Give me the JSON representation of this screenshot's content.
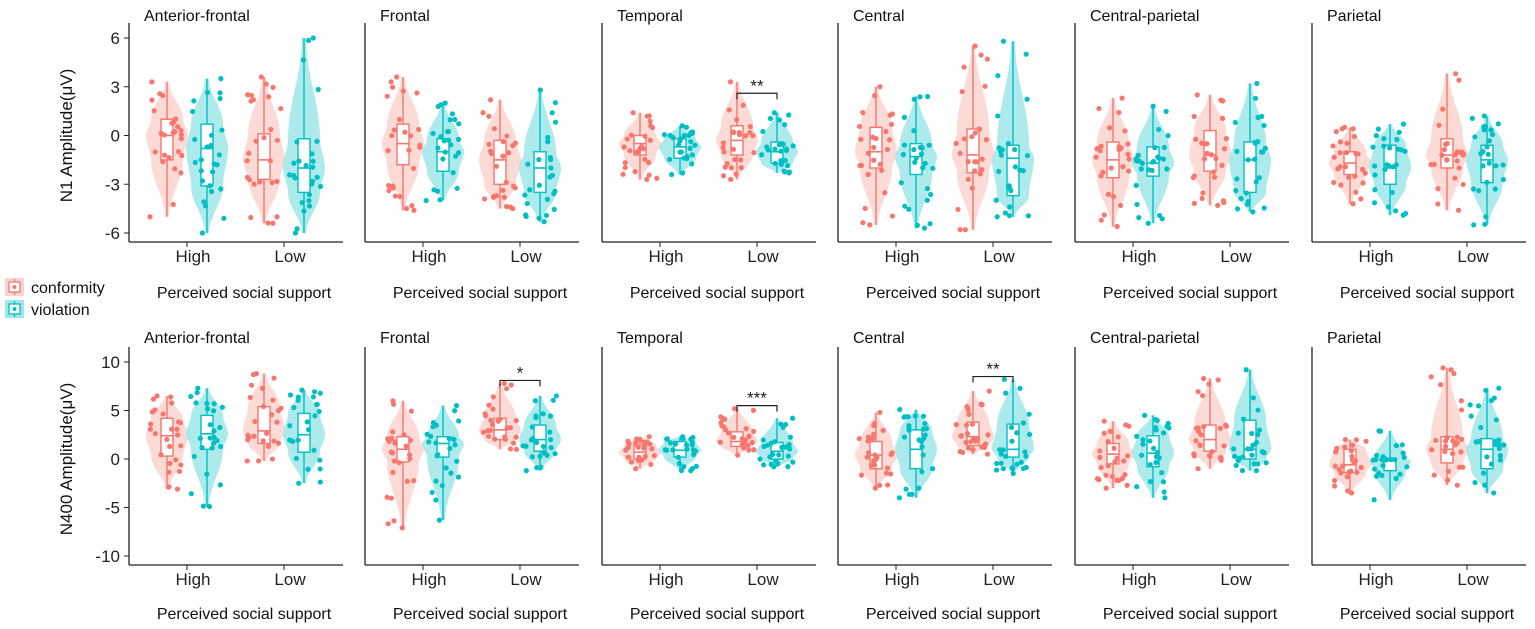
{
  "chart_data": [
    {
      "type": "violin",
      "row": "N1",
      "ylabel": "N1 Amplitude(μV)",
      "xlabel": "Perceived social support",
      "ylim": [
        -6.5,
        6.5
      ],
      "yticks": [
        6,
        3,
        0,
        -3,
        -6
      ],
      "categories": [
        "High",
        "Low"
      ],
      "series_names": [
        "conformity",
        "violation"
      ],
      "stats_order": [
        "min",
        "q1",
        "median",
        "q3",
        "max"
      ],
      "panels": [
        {
          "title": "Anterior-frontal",
          "groups": {
            "High": [
              [
                -5,
                -1.5,
                0,
                1,
                3.3
              ],
              [
                -6,
                -3.1,
                -0.8,
                0.7,
                3.5
              ]
            ],
            "Low": [
              [
                -5.4,
                -2.7,
                -1.5,
                0.1,
                3.6
              ],
              [
                -6,
                -3.5,
                -2,
                -0.2,
                6
              ]
            ]
          },
          "sig": []
        },
        {
          "title": "Frontal",
          "groups": {
            "High": [
              [
                -4.6,
                -1.8,
                -0.5,
                0.7,
                3.6
              ],
              [
                -4,
                -2.2,
                -1,
                -0.2,
                2
              ]
            ],
            "Low": [
              [
                -4.5,
                -3,
                -1.5,
                -0.3,
                2.2
              ],
              [
                -5.3,
                -3.5,
                -2,
                -1,
                2.8
              ]
            ]
          },
          "sig": []
        },
        {
          "title": "Temporal",
          "groups": {
            "High": [
              [
                -2.7,
                -1.2,
                -0.5,
                0,
                1.4
              ],
              [
                -2.4,
                -1.4,
                -0.7,
                -0.2,
                0.6
              ]
            ],
            "Low": [
              [
                -2.7,
                -1.2,
                -0.3,
                0.6,
                3.3
              ],
              [
                -2.3,
                -1.7,
                -1,
                -0.4,
                1.4
              ]
            ]
          },
          "sig": [
            {
              "category": "Low",
              "label": "**",
              "y": 2.6
            }
          ]
        },
        {
          "title": "Central",
          "groups": {
            "High": [
              [
                -5.5,
                -2,
                -1,
                0.5,
                3
              ],
              [
                -5.7,
                -2.4,
                -1.3,
                -0.5,
                2.4
              ]
            ],
            "Low": [
              [
                -5.8,
                -2.3,
                -1.2,
                0.4,
                5.5
              ],
              [
                -5,
                -3.7,
                -1.4,
                -0.6,
                5.8
              ]
            ]
          },
          "sig": []
        },
        {
          "title": "Central-parietal",
          "groups": {
            "High": [
              [
                -5.6,
                -2.6,
                -1.5,
                -0.4,
                2.3
              ],
              [
                -5.4,
                -2.5,
                -1.7,
                -0.7,
                1.8
              ]
            ],
            "Low": [
              [
                -4.3,
                -2.2,
                -1.2,
                0.3,
                2.5
              ],
              [
                -4.7,
                -3.5,
                -1.5,
                -0.4,
                3.2
              ]
            ]
          },
          "sig": []
        },
        {
          "title": "Parietal",
          "groups": {
            "High": [
              [
                -4.2,
                -2.4,
                -1.7,
                -1,
                0.5
              ],
              [
                -4.9,
                -3,
                -2,
                -0.6,
                0.7
              ]
            ],
            "Low": [
              [
                -4.6,
                -2,
                -1.2,
                -0.2,
                3.8
              ],
              [
                -5.5,
                -2.9,
                -1.5,
                -0.6,
                1.2
              ]
            ]
          },
          "sig": []
        }
      ]
    },
    {
      "type": "violin",
      "row": "N400",
      "ylabel": "N400 Amplitude(μV)",
      "xlabel": "Perceived social support",
      "ylim": [
        -11,
        11
      ],
      "yticks": [
        10,
        5,
        0,
        -5,
        -10
      ],
      "categories": [
        "High",
        "Low"
      ],
      "series_names": [
        "conformity",
        "violation"
      ],
      "stats_order": [
        "min",
        "q1",
        "median",
        "q3",
        "max"
      ],
      "panels": [
        {
          "title": "Anterior-frontal",
          "groups": {
            "High": [
              [
                -3.1,
                0.3,
                2.4,
                4.2,
                6.5
              ],
              [
                -4.9,
                1,
                2.6,
                4.5,
                7.3
              ]
            ],
            "Low": [
              [
                -0.2,
                1.6,
                2.9,
                5.4,
                8.8
              ],
              [
                -2.5,
                0.7,
                2.5,
                4.7,
                7.1
              ]
            ]
          },
          "sig": []
        },
        {
          "title": "Frontal",
          "groups": {
            "High": [
              [
                -7.1,
                -0.3,
                1,
                2.3,
                6
              ],
              [
                -6.3,
                0.2,
                1.6,
                2.3,
                5.5
              ]
            ],
            "Low": [
              [
                1,
                2,
                3,
                4.2,
                7.8
              ],
              [
                -1.2,
                0.8,
                2,
                3.5,
                6.5
              ]
            ]
          },
          "sig": [
            {
              "category": "Low",
              "label": "*",
              "y": 8.1
            }
          ]
        },
        {
          "title": "Temporal",
          "groups": {
            "High": [
              [
                -1,
                0,
                0.7,
                1.4,
                2.3
              ],
              [
                -1.2,
                0.2,
                0.9,
                1.8,
                2.3
              ]
            ],
            "Low": [
              [
                0.4,
                1.3,
                1.8,
                2.8,
                5.2
              ],
              [
                -0.8,
                0,
                0.8,
                1.7,
                4.2
              ]
            ]
          },
          "sig": [
            {
              "category": "Low",
              "label": "***",
              "y": 5.5
            }
          ]
        },
        {
          "title": "Central",
          "groups": {
            "High": [
              [
                -3,
                -1,
                0.4,
                1.8,
                4.8
              ],
              [
                -4,
                -1,
                1,
                3,
                5.1
              ]
            ],
            "Low": [
              [
                0.5,
                1.4,
                2.3,
                3.8,
                7
              ],
              [
                -1.5,
                0.2,
                1,
                3.6,
                8.2
              ]
            ]
          },
          "sig": [
            {
              "category": "Low",
              "label": "**",
              "y": 8.5
            }
          ]
        },
        {
          "title": "Central-parietal",
          "groups": {
            "High": [
              [
                -3,
                -0.5,
                0.5,
                1.6,
                3.9
              ],
              [
                -4,
                -0.8,
                0.6,
                2.4,
                4.5
              ]
            ],
            "Low": [
              [
                -1,
                0.8,
                2,
                3.5,
                8.3
              ],
              [
                -1.2,
                0,
                1,
                4,
                9.2
              ]
            ]
          },
          "sig": []
        },
        {
          "title": "Parietal",
          "groups": {
            "High": [
              [
                -3.5,
                -1.4,
                -0.6,
                1,
                2
              ],
              [
                -4.2,
                -1.2,
                -0.1,
                0,
                2.9
              ]
            ],
            "Low": [
              [
                -2.7,
                -0.4,
                1,
                2.3,
                9.4
              ],
              [
                -3.5,
                -1,
                1,
                2.1,
                7.3
              ]
            ]
          },
          "sig": []
        }
      ]
    }
  ],
  "legend": {
    "items": [
      "conformity",
      "violation"
    ],
    "colors": [
      "#F8766D",
      "#00BFC4"
    ]
  }
}
